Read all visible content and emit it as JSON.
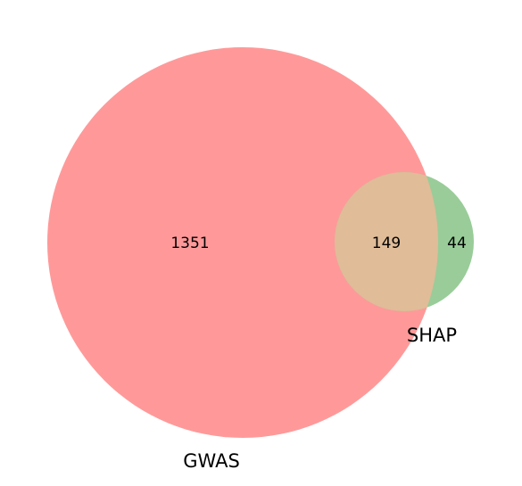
{
  "chart_data": {
    "type": "venn",
    "sets": [
      {
        "name": "GWAS",
        "only_count": "1351",
        "color": "#ff9999"
      },
      {
        "name": "SHAP",
        "only_count": "44",
        "color": "#99cc99"
      }
    ],
    "intersection": {
      "count": "149",
      "color": "#e0bc98"
    }
  }
}
